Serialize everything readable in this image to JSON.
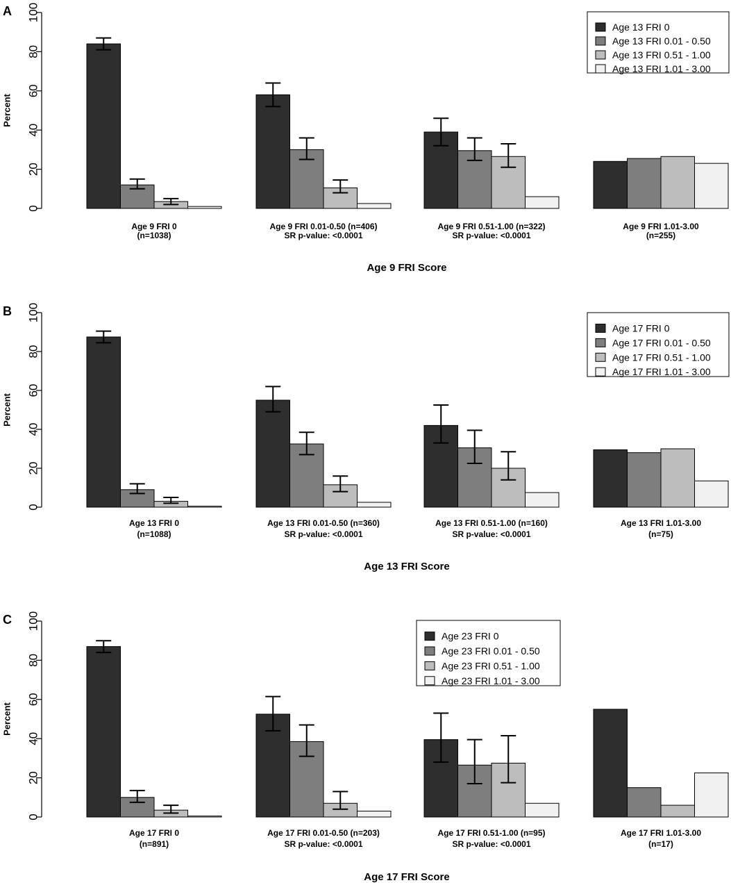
{
  "chart_data": [
    {
      "panel_label": "A",
      "type": "bar",
      "ylabel": "Percent",
      "xlabel": "Age 9 FRI Score",
      "ylim": [
        0,
        100
      ],
      "yticks": [
        0,
        20,
        40,
        60,
        80,
        100
      ],
      "legend_position": "top-right",
      "series_names": [
        "Age 13 FRI 0",
        "Age 13 FRI 0.01 - 0.50",
        "Age 13 FRI 0.51 - 1.00",
        "Age 13 FRI 1.01 - 3.00"
      ],
      "colors": [
        "#2e2e2e",
        "#7e7e7e",
        "#bdbdbd",
        "#f1f1f1"
      ],
      "groups": [
        {
          "label": "Age 9 FRI 0",
          "sublabel": "(n=1038)",
          "values": [
            84,
            12,
            3.5,
            1
          ],
          "errors": [
            [
              81,
              87
            ],
            [
              10,
              15
            ],
            [
              2,
              5
            ],
            null
          ]
        },
        {
          "label": "Age 9 FRI 0.01-0.50 (n=406)",
          "sublabel": "SR p-value: <0.0001",
          "values": [
            58,
            30,
            10.5,
            2.5
          ],
          "errors": [
            [
              52,
              64
            ],
            [
              25,
              36
            ],
            [
              8,
              14.5
            ],
            null
          ]
        },
        {
          "label": "Age 9 FRI 0.51-1.00 (n=322)",
          "sublabel": "SR p-value: <0.0001",
          "values": [
            39,
            29.5,
            26.5,
            6
          ],
          "errors": [
            [
              32,
              46
            ],
            [
              24.5,
              36
            ],
            [
              21,
              33
            ],
            null
          ]
        },
        {
          "label": "Age 9 FRI 1.01-3.00",
          "sublabel": "(n=255)",
          "values": [
            24,
            25.5,
            26.5,
            23
          ],
          "errors": [
            null,
            null,
            null,
            null
          ]
        }
      ]
    },
    {
      "panel_label": "B",
      "type": "bar",
      "ylabel": "Percent",
      "xlabel": "Age 13 FRI Score",
      "ylim": [
        0,
        100
      ],
      "yticks": [
        0,
        20,
        40,
        60,
        80,
        100
      ],
      "legend_position": "top-right",
      "series_names": [
        "Age 17 FRI 0",
        "Age 17 FRI 0.01 - 0.50",
        "Age 17 FRI 0.51 - 1.00",
        "Age 17 FRI 1.01 - 3.00"
      ],
      "colors": [
        "#2e2e2e",
        "#7e7e7e",
        "#bdbdbd",
        "#f1f1f1"
      ],
      "groups": [
        {
          "label": "Age 13 FRI 0",
          "sublabel": "(n=1088)",
          "values": [
            87.5,
            9,
            3,
            0.5
          ],
          "errors": [
            [
              84.5,
              90.5
            ],
            [
              7,
              12
            ],
            [
              2,
              5
            ],
            null
          ]
        },
        {
          "label": "Age 13 FRI 0.01-0.50 (n=360)",
          "sublabel": "SR p-value: <0.0001",
          "values": [
            55,
            32.5,
            11.5,
            2.5
          ],
          "errors": [
            [
              49,
              62
            ],
            [
              27,
              38.5
            ],
            [
              8,
              16
            ],
            null
          ]
        },
        {
          "label": "Age 13 FRI 0.51-1.00 (n=160)",
          "sublabel": "SR p-value: <0.0001",
          "values": [
            42,
            30.5,
            20,
            7.5
          ],
          "errors": [
            [
              33,
              52.5
            ],
            [
              22.5,
              39.5
            ],
            [
              14,
              28.5
            ],
            null
          ]
        },
        {
          "label": "Age 13 FRI 1.01-3.00",
          "sublabel": "(n=75)",
          "values": [
            29.5,
            28,
            30,
            13.5
          ],
          "errors": [
            null,
            null,
            null,
            null
          ]
        }
      ]
    },
    {
      "panel_label": "C",
      "type": "bar",
      "ylabel": "Percent",
      "xlabel": "Age 17 FRI Score",
      "ylim": [
        0,
        100
      ],
      "yticks": [
        0,
        20,
        40,
        60,
        80,
        100
      ],
      "legend_position": "top-center",
      "series_names": [
        "Age 23 FRI 0",
        "Age 23 FRI 0.01 - 0.50",
        "Age 23 FRI 0.51 - 1.00",
        "Age 23 FRI 1.01 - 3.00"
      ],
      "colors": [
        "#2e2e2e",
        "#7e7e7e",
        "#bdbdbd",
        "#f1f1f1"
      ],
      "groups": [
        {
          "label": "Age 17 FRI 0",
          "sublabel": "(n=891)",
          "values": [
            87,
            10,
            3.5,
            0.5
          ],
          "errors": [
            [
              84,
              90
            ],
            [
              7.5,
              13.5
            ],
            [
              2,
              6
            ],
            null
          ]
        },
        {
          "label": "Age 17 FRI 0.01-0.50 (n=203)",
          "sublabel": "SR p-value: <0.0001",
          "values": [
            52.5,
            38.5,
            7,
            3
          ],
          "errors": [
            [
              44,
              61.5
            ],
            [
              31,
              47
            ],
            [
              4,
              13
            ],
            null
          ]
        },
        {
          "label": "Age 17 FRI 0.51-1.00 (n=95)",
          "sublabel": "SR p-value: <0.0001",
          "values": [
            39.5,
            26.5,
            27.5,
            7
          ],
          "errors": [
            [
              28,
              53
            ],
            [
              17,
              39.5
            ],
            [
              17.5,
              41.5
            ],
            null
          ]
        },
        {
          "label": "Age 17 FRI 1.01-3.00",
          "sublabel": "(n=17)",
          "values": [
            55,
            15,
            6,
            22.5
          ],
          "errors": [
            null,
            null,
            null,
            null
          ]
        }
      ]
    }
  ]
}
